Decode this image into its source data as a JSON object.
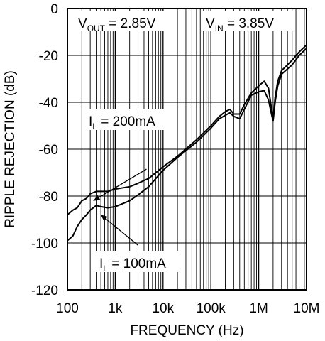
{
  "chart_data": {
    "type": "line",
    "title": "",
    "xlabel": "FREQUENCY (Hz)",
    "ylabel": "RIPPLE REJECTION (dB)",
    "x_scale": "log",
    "xlim": [
      100,
      10000000
    ],
    "ylim": [
      -120,
      0
    ],
    "grid": true,
    "x_ticks": [
      100,
      1000,
      10000,
      100000,
      1000000,
      10000000
    ],
    "x_tick_labels": [
      "100",
      "1k",
      "10k",
      "100k",
      "1M",
      "10M"
    ],
    "y_ticks": [
      0,
      -20,
      -40,
      -60,
      -80,
      -100,
      -120
    ],
    "y_tick_labels": [
      "0",
      "-20",
      "-40",
      "-60",
      "-80",
      "-100",
      "-120"
    ],
    "annotations": [
      {
        "id": "vout",
        "main": "V",
        "sub": "OUT",
        "rest": " = 2.85V"
      },
      {
        "id": "vin",
        "main": "V",
        "sub": "IN",
        "rest": " = 3.85V"
      },
      {
        "id": "il200",
        "main": "I",
        "sub": "L",
        "rest": " = 200mA"
      },
      {
        "id": "il100",
        "main": "I",
        "sub": "L",
        "rest": " = 100mA"
      }
    ],
    "series": [
      {
        "name": "I_L = 200mA",
        "x": [
          100,
          130,
          160,
          200,
          250,
          300,
          400,
          500,
          700,
          1000,
          2000,
          3000,
          5000,
          10000,
          20000,
          50000,
          100000,
          150000,
          200000,
          250000,
          300000,
          400000,
          500000,
          700000,
          1000000,
          1300000,
          1600000,
          1800000,
          2000000,
          2200000,
          2500000,
          3000000,
          5000000,
          7000000,
          10000000
        ],
        "y": [
          -88,
          -86,
          -85,
          -82,
          -81,
          -79,
          -78,
          -78,
          -78,
          -77,
          -76,
          -74.5,
          -72.5,
          -67.5,
          -63,
          -56,
          -50,
          -46,
          -44,
          -43,
          -45,
          -45,
          -41,
          -36,
          -33,
          -31,
          -34,
          -41,
          -47,
          -38,
          -31,
          -26.5,
          -22,
          -18.5,
          -15.5
        ]
      },
      {
        "name": "I_L = 100mA",
        "x": [
          100,
          130,
          160,
          200,
          250,
          300,
          400,
          500,
          700,
          1000,
          2000,
          3000,
          5000,
          10000,
          20000,
          50000,
          100000,
          150000,
          200000,
          250000,
          300000,
          400000,
          500000,
          700000,
          1000000,
          1300000,
          1600000,
          1800000,
          2000000,
          2200000,
          2500000,
          3000000,
          5000000,
          7000000,
          10000000
        ],
        "y": [
          -99,
          -97,
          -93,
          -90,
          -88,
          -86,
          -84,
          -84.5,
          -85,
          -84.5,
          -82,
          -79.5,
          -76,
          -69,
          -63.5,
          -57,
          -51,
          -47,
          -45.5,
          -44.5,
          -46,
          -47,
          -43,
          -37,
          -35.5,
          -35,
          -39,
          -44,
          -48,
          -40,
          -33,
          -28,
          -24,
          -20,
          -17
        ]
      }
    ],
    "leaders": [
      {
        "label": "I_L = 200mA",
        "from": [
          4500,
          -68.5
        ],
        "to": [
          350,
          -82
        ]
      },
      {
        "label": "I_L = 100mA",
        "from": [
          3000,
          -101
        ],
        "to": [
          500,
          -88
        ]
      }
    ]
  }
}
